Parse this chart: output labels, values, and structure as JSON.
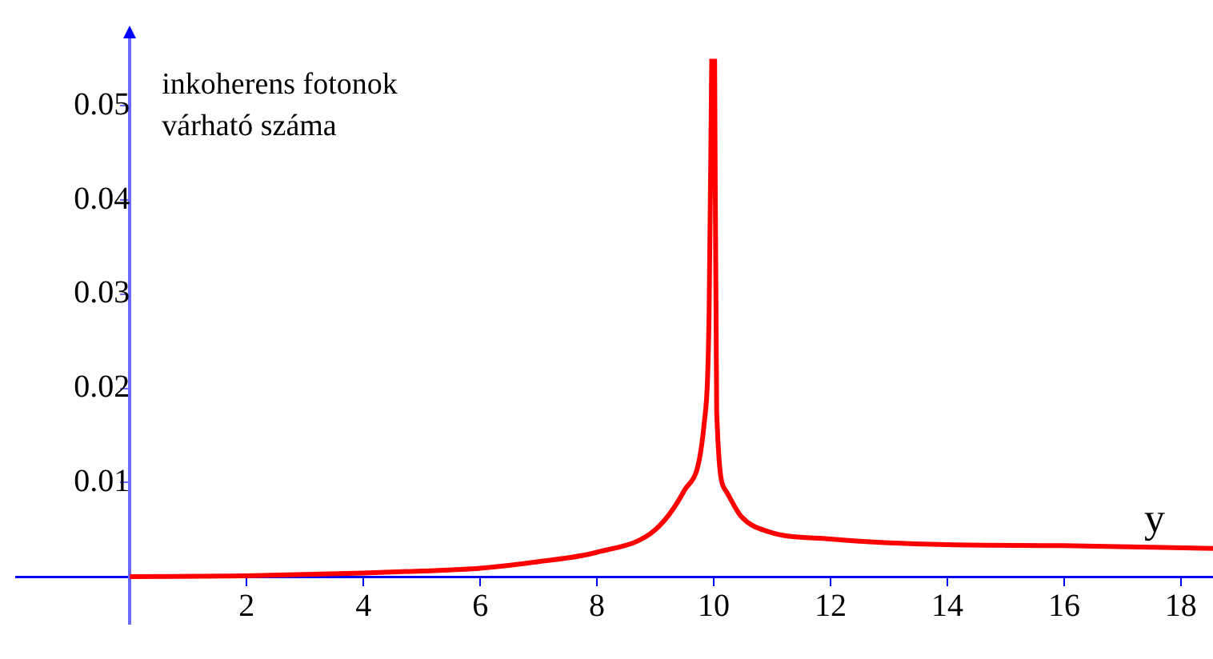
{
  "chart_data": {
    "type": "line",
    "ylabel": "inkoherens fotonok\nvárható száma",
    "xlabel": "y",
    "series": [
      {
        "color": "#ff0000",
        "x": [
          0,
          2,
          4,
          5,
          6,
          7,
          8,
          9,
          9.5,
          9.84,
          9.92,
          9.965,
          9.99,
          10.015,
          10.05,
          10.2,
          10.47,
          10.93,
          12,
          14,
          16,
          18.55
        ],
        "values": [
          0,
          0.0001,
          0.0004,
          0.0006,
          0.0009,
          0.0016,
          0.0026,
          0.005,
          0.0092,
          0.0165,
          0.028,
          0.055,
          null,
          0.055,
          0.0175,
          0.0092,
          0.0064,
          0.0048,
          0.004,
          0.0034,
          0.0033,
          0.003
        ]
      }
    ],
    "xlim": [
      -1.95,
      18.55
    ],
    "xticks": [
      2,
      4,
      6,
      8,
      10,
      12,
      14,
      16,
      18
    ],
    "ylim": [
      -0.005,
      0.0575
    ],
    "yticks": [
      0.01,
      0.02,
      0.03,
      0.04,
      0.05
    ],
    "grid": false,
    "legend": false,
    "marker": "none",
    "line_style": "solid"
  }
}
